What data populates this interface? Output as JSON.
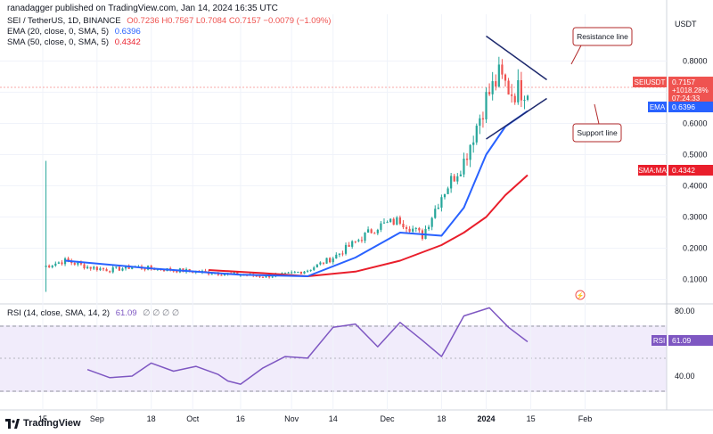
{
  "header": {
    "publisher": "ranadagger published on TradingView.com, Jan 14, 2024 16:35 UTC",
    "symbol": "SEI / TetherUS, 1D, BINANCE",
    "ohlc": "O0.7236 H0.7567 L0.7084 C0.7157 −0.0079 (−1.09%)",
    "ema_label": "EMA (20, close, 0, SMA, 5)",
    "ema_value": "0.6396",
    "sma_label": "SMA (50, close, 0, SMA, 5)",
    "sma_value": "0.4342",
    "rsi_label": "RSI (14, close, SMA, 14, 2)",
    "rsi_value": "61.09",
    "rsi_extra": "∅ ∅ ∅ ∅"
  },
  "colors": {
    "up": "#26a69a",
    "down": "#ef5350",
    "ema": "#2962ff",
    "sma": "#e91e2b",
    "rsi": "#7e57c2",
    "trendline": "#1e2a6e",
    "annotation": "#b22a2a"
  },
  "axis": {
    "currency": "USDT",
    "price_ticks": [
      "0.8000",
      "0.7000",
      "0.6000",
      "0.5000",
      "0.4000",
      "0.3000",
      "0.2000",
      "0.1000"
    ],
    "rsi_ticks": [
      "80.00",
      "40.00"
    ],
    "time_ticks": [
      "15",
      "Sep",
      "18",
      "Oct",
      "16",
      "Nov",
      "14",
      "Dec",
      "18",
      "2024",
      "15",
      "Feb"
    ]
  },
  "tags": {
    "symbol": "SEIUSDT",
    "price": "0.7157",
    "change": "+1018.28%",
    "countdown": "07:24:33",
    "ema_label": "EMA",
    "ema_value": "0.6396",
    "sma_label": "SMA:MA",
    "sma_value": "0.4342",
    "rsi_label": "RSI",
    "rsi_value": "61.09"
  },
  "annotations": {
    "resistance": "Resistance line",
    "support": "Support line"
  },
  "brand": "TradingView",
  "chart_data": {
    "type": "candlestick",
    "title": "SEI / TetherUS, 1D, BINANCE",
    "x_range": [
      "2023-08-15",
      "2024-02-14"
    ],
    "y_range": [
      0.0,
      0.9
    ],
    "grid": true,
    "price_series": [
      {
        "date": "2023-08-15",
        "close": 0.14,
        "high": 0.48,
        "low": 0.06
      },
      {
        "date": "2023-08-22",
        "close": 0.16
      },
      {
        "date": "2023-08-29",
        "close": 0.14
      },
      {
        "date": "2023-09-05",
        "close": 0.13
      },
      {
        "date": "2023-09-12",
        "close": 0.14
      },
      {
        "date": "2023-09-18",
        "close": 0.135
      },
      {
        "date": "2023-09-25",
        "close": 0.13
      },
      {
        "date": "2023-10-02",
        "close": 0.125
      },
      {
        "date": "2023-10-09",
        "close": 0.12
      },
      {
        "date": "2023-10-16",
        "close": 0.115
      },
      {
        "date": "2023-10-23",
        "close": 0.11
      },
      {
        "date": "2023-10-30",
        "close": 0.115
      },
      {
        "date": "2023-11-06",
        "close": 0.13
      },
      {
        "date": "2023-11-14",
        "close": 0.17
      },
      {
        "date": "2023-11-21",
        "close": 0.22
      },
      {
        "date": "2023-11-28",
        "close": 0.27
      },
      {
        "date": "2023-12-05",
        "close": 0.29
      },
      {
        "date": "2023-12-12",
        "close": 0.24
      },
      {
        "date": "2023-12-18",
        "close": 0.37
      },
      {
        "date": "2023-12-25",
        "close": 0.48
      },
      {
        "date": "2024-01-01",
        "close": 0.68
      },
      {
        "date": "2024-01-05",
        "close": 0.75
      },
      {
        "date": "2024-01-09",
        "close": 0.7
      },
      {
        "date": "2024-01-14",
        "close": 0.7157
      }
    ],
    "ema20": [
      {
        "date": "2023-08-22",
        "value": 0.16
      },
      {
        "date": "2023-09-18",
        "value": 0.135
      },
      {
        "date": "2023-10-16",
        "value": 0.115
      },
      {
        "date": "2023-11-06",
        "value": 0.11
      },
      {
        "date": "2023-11-21",
        "value": 0.17
      },
      {
        "date": "2023-12-05",
        "value": 0.25
      },
      {
        "date": "2023-12-18",
        "value": 0.24
      },
      {
        "date": "2023-12-25",
        "value": 0.33
      },
      {
        "date": "2024-01-01",
        "value": 0.5
      },
      {
        "date": "2024-01-07",
        "value": 0.59
      },
      {
        "date": "2024-01-14",
        "value": 0.6396
      }
    ],
    "sma50": [
      {
        "date": "2023-10-06",
        "value": 0.13
      },
      {
        "date": "2023-10-23",
        "value": 0.12
      },
      {
        "date": "2023-11-06",
        "value": 0.11
      },
      {
        "date": "2023-11-21",
        "value": 0.125
      },
      {
        "date": "2023-12-05",
        "value": 0.16
      },
      {
        "date": "2023-12-18",
        "value": 0.21
      },
      {
        "date": "2023-12-25",
        "value": 0.25
      },
      {
        "date": "2024-01-01",
        "value": 0.3
      },
      {
        "date": "2024-01-07",
        "value": 0.37
      },
      {
        "date": "2024-01-14",
        "value": 0.4342
      }
    ],
    "trendlines": [
      {
        "name": "Resistance line",
        "from": {
          "date": "2024-01-01",
          "value": 0.88
        },
        "to": {
          "date": "2024-01-20",
          "value": 0.74
        }
      },
      {
        "name": "Support line",
        "from": {
          "date": "2024-01-01",
          "value": 0.55
        },
        "to": {
          "date": "2024-01-20",
          "value": 0.68
        }
      }
    ],
    "rsi": [
      {
        "date": "2023-08-29",
        "value": 44
      },
      {
        "date": "2023-09-05",
        "value": 39
      },
      {
        "date": "2023-09-12",
        "value": 40
      },
      {
        "date": "2023-09-18",
        "value": 48
      },
      {
        "date": "2023-09-25",
        "value": 43
      },
      {
        "date": "2023-10-02",
        "value": 46
      },
      {
        "date": "2023-10-09",
        "value": 41
      },
      {
        "date": "2023-10-12",
        "value": 37
      },
      {
        "date": "2023-10-16",
        "value": 35
      },
      {
        "date": "2023-10-23",
        "value": 45
      },
      {
        "date": "2023-10-30",
        "value": 52
      },
      {
        "date": "2023-11-06",
        "value": 51
      },
      {
        "date": "2023-11-14",
        "value": 70
      },
      {
        "date": "2023-11-21",
        "value": 72
      },
      {
        "date": "2023-11-28",
        "value": 58
      },
      {
        "date": "2023-12-05",
        "value": 73
      },
      {
        "date": "2023-12-12",
        "value": 62
      },
      {
        "date": "2023-12-18",
        "value": 52
      },
      {
        "date": "2023-12-25",
        "value": 77
      },
      {
        "date": "2024-01-02",
        "value": 82
      },
      {
        "date": "2024-01-08",
        "value": 70
      },
      {
        "date": "2024-01-14",
        "value": 61.09
      }
    ],
    "rsi_levels": [
      70,
      30
    ]
  }
}
